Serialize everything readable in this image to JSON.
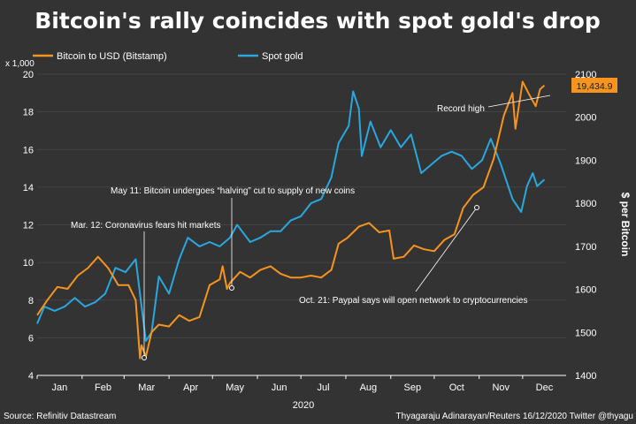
{
  "chart_data": {
    "type": "line",
    "title": "Bitcoin's rally coincides with spot gold's drop",
    "left_axis": {
      "unit_note": "x 1,000",
      "ylim": [
        4,
        20
      ],
      "ticks": [
        4,
        6,
        8,
        10,
        12,
        14,
        16,
        18,
        20
      ]
    },
    "right_axis": {
      "label": "$ per Bitcoin",
      "ylim": [
        1400,
        2100
      ],
      "ticks": [
        1400,
        1500,
        1600,
        1700,
        1800,
        1900,
        2000,
        2100
      ]
    },
    "x_axis": {
      "months": [
        "Jan",
        "Feb",
        "Mar",
        "Apr",
        "May",
        "Jun",
        "Jul",
        "Aug",
        "Sep",
        "Oct",
        "Nov",
        "Dec"
      ],
      "year_label": "2020"
    },
    "series": [
      {
        "name": "Bitcoin to USD (Bitstamp)",
        "color": "#f7941d",
        "axis": "left",
        "x": [
          "2020-01-01",
          "2020-01-08",
          "2020-01-15",
          "2020-01-22",
          "2020-01-29",
          "2020-02-05",
          "2020-02-12",
          "2020-02-19",
          "2020-02-26",
          "2020-03-04",
          "2020-03-09",
          "2020-03-12",
          "2020-03-13",
          "2020-03-16",
          "2020-03-20",
          "2020-03-25",
          "2020-04-01",
          "2020-04-08",
          "2020-04-15",
          "2020-04-22",
          "2020-04-29",
          "2020-05-06",
          "2020-05-08",
          "2020-05-11",
          "2020-05-13",
          "2020-05-20",
          "2020-05-27",
          "2020-06-03",
          "2020-06-10",
          "2020-06-17",
          "2020-06-24",
          "2020-07-01",
          "2020-07-08",
          "2020-07-15",
          "2020-07-22",
          "2020-07-27",
          "2020-08-02",
          "2020-08-10",
          "2020-08-17",
          "2020-08-24",
          "2020-08-31",
          "2020-09-03",
          "2020-09-10",
          "2020-09-17",
          "2020-09-24",
          "2020-10-01",
          "2020-10-08",
          "2020-10-15",
          "2020-10-21",
          "2020-10-28",
          "2020-11-04",
          "2020-11-11",
          "2020-11-18",
          "2020-11-24",
          "2020-11-26",
          "2020-12-01",
          "2020-12-05",
          "2020-12-10",
          "2020-12-13",
          "2020-12-16"
        ],
        "values": [
          7.2,
          8.0,
          8.7,
          8.6,
          9.3,
          9.7,
          10.3,
          9.7,
          8.8,
          8.8,
          8.0,
          4.9,
          5.6,
          5.0,
          6.3,
          6.7,
          6.6,
          7.2,
          6.9,
          7.1,
          8.8,
          9.1,
          9.8,
          8.6,
          8.9,
          9.5,
          9.2,
          9.6,
          9.8,
          9.4,
          9.2,
          9.2,
          9.3,
          9.2,
          9.6,
          11.0,
          11.3,
          11.9,
          12.1,
          11.6,
          11.7,
          10.2,
          10.3,
          10.9,
          10.7,
          10.6,
          11.2,
          11.5,
          12.9,
          13.6,
          14.0,
          15.5,
          17.8,
          19.0,
          17.1,
          19.6,
          19.0,
          18.3,
          19.2,
          19.4
        ]
      },
      {
        "name": "Spot gold",
        "color": "#29a8e0",
        "axis": "right",
        "x": [
          "2020-01-01",
          "2020-01-06",
          "2020-01-13",
          "2020-01-20",
          "2020-01-27",
          "2020-02-03",
          "2020-02-10",
          "2020-02-17",
          "2020-02-24",
          "2020-03-02",
          "2020-03-09",
          "2020-03-16",
          "2020-03-20",
          "2020-03-25",
          "2020-04-01",
          "2020-04-08",
          "2020-04-14",
          "2020-04-22",
          "2020-04-29",
          "2020-05-06",
          "2020-05-13",
          "2020-05-18",
          "2020-05-27",
          "2020-06-03",
          "2020-06-10",
          "2020-06-17",
          "2020-06-24",
          "2020-07-01",
          "2020-07-08",
          "2020-07-15",
          "2020-07-22",
          "2020-07-27",
          "2020-08-03",
          "2020-08-06",
          "2020-08-10",
          "2020-08-12",
          "2020-08-18",
          "2020-08-25",
          "2020-09-01",
          "2020-09-08",
          "2020-09-15",
          "2020-09-22",
          "2020-09-29",
          "2020-10-06",
          "2020-10-13",
          "2020-10-20",
          "2020-10-27",
          "2020-11-03",
          "2020-11-09",
          "2020-11-16",
          "2020-11-24",
          "2020-11-30",
          "2020-12-04",
          "2020-12-08",
          "2020-12-11",
          "2020-12-16"
        ],
        "values": [
          1520,
          1560,
          1550,
          1560,
          1580,
          1560,
          1570,
          1590,
          1650,
          1640,
          1670,
          1480,
          1500,
          1630,
          1590,
          1670,
          1720,
          1700,
          1710,
          1700,
          1720,
          1750,
          1710,
          1720,
          1735,
          1735,
          1760,
          1770,
          1800,
          1810,
          1860,
          1940,
          1980,
          2060,
          2020,
          1910,
          1990,
          1930,
          1970,
          1930,
          1960,
          1870,
          1890,
          1910,
          1920,
          1910,
          1880,
          1900,
          1950,
          1890,
          1810,
          1780,
          1840,
          1870,
          1840,
          1855
        ]
      }
    ],
    "data_labels": {
      "last_bitcoin_value": "19,434.9"
    }
  },
  "annotations": {
    "mar12": "Mar. 12: Coronavirus fears hit markets",
    "may11": "May 11: Bitcoin undergoes “halving” cut to supply of new coins",
    "oct21": "Oct. 21: Paypal says will open network to cryptocurrencies",
    "record": "Record high"
  },
  "footer": {
    "source": "Source: Refinitiv Datastream",
    "credit": "Thyagaraju Adinarayan/Reuters 16/12/2020 Twitter @thyagu"
  }
}
